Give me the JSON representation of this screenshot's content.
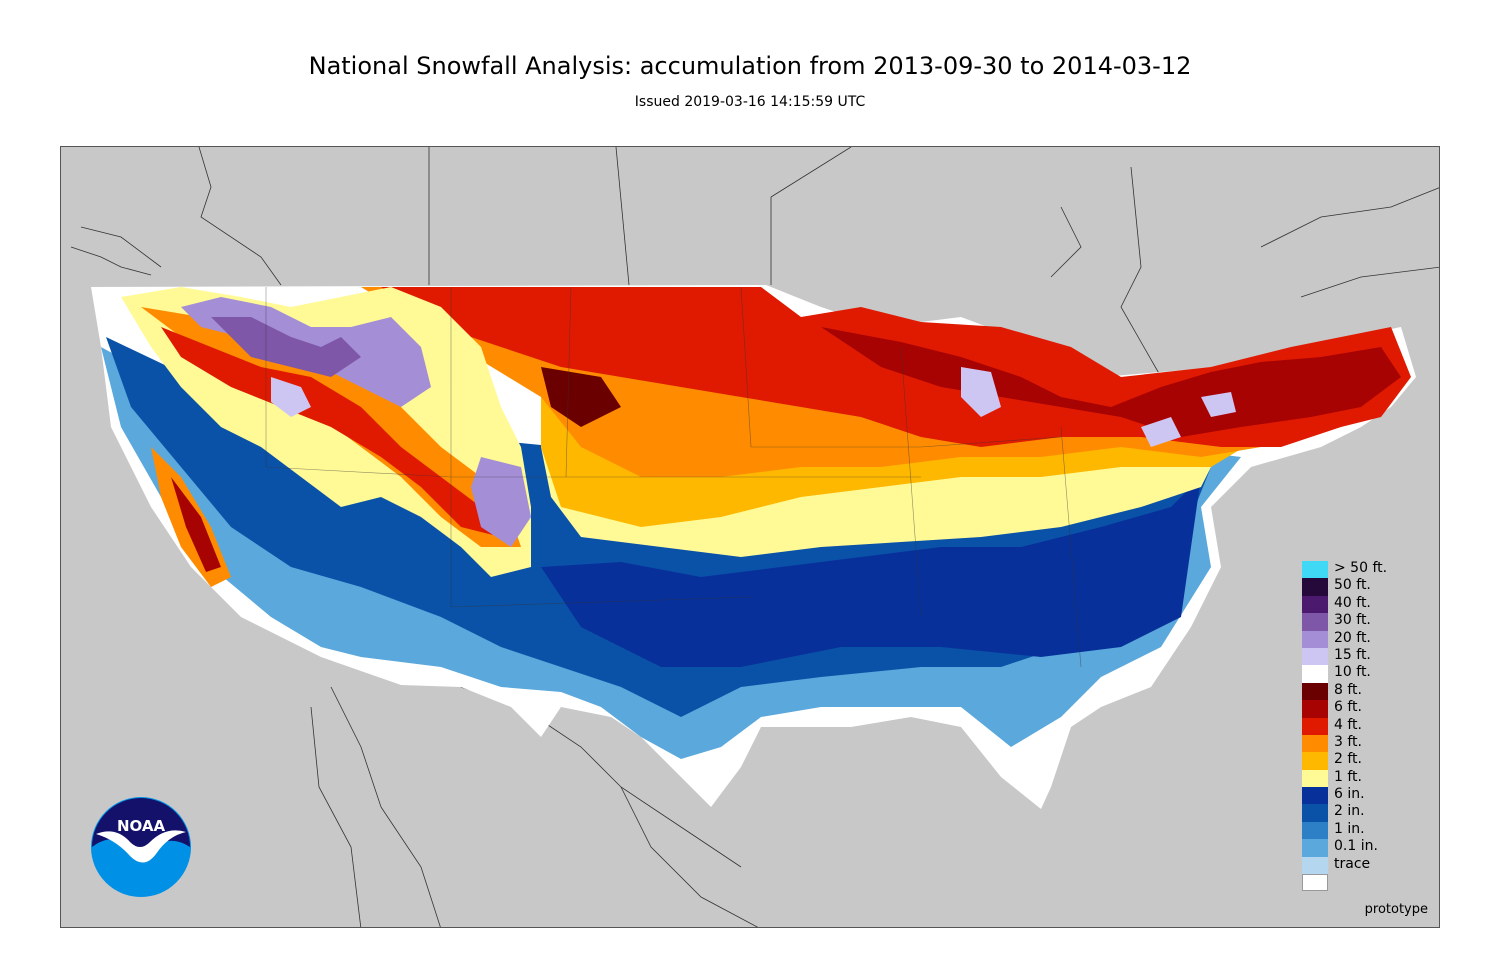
{
  "header": {
    "title": "National Snowfall Analysis: accumulation from 2013-09-30 to 2014-03-12",
    "subtitle": "Issued 2019-03-16 14:15:59 UTC"
  },
  "logo": {
    "text": "NOAA",
    "icon": "noaa-logo-icon"
  },
  "footer": {
    "note": "prototype"
  },
  "map": {
    "background_color": "#c8c8c8",
    "land_outline_color": "#333333"
  },
  "legend": [
    {
      "label": "> 50 ft.",
      "color": "#3fd9f5"
    },
    {
      "label": "50 ft.",
      "color": "#26093b"
    },
    {
      "label": "40 ft.",
      "color": "#4b1a6e"
    },
    {
      "label": "30 ft.",
      "color": "#7e57a8"
    },
    {
      "label": "20 ft.",
      "color": "#a48ed6"
    },
    {
      "label": "15 ft.",
      "color": "#cec6f2"
    },
    {
      "label": "10 ft.",
      "color": "#ffffff"
    },
    {
      "label": "8 ft.",
      "color": "#6b0000"
    },
    {
      "label": "6 ft.",
      "color": "#a80303"
    },
    {
      "label": "4 ft.",
      "color": "#e01a00"
    },
    {
      "label": "3 ft.",
      "color": "#ff8c00"
    },
    {
      "label": "2 ft.",
      "color": "#ffb800"
    },
    {
      "label": "1 ft.",
      "color": "#fffa96"
    },
    {
      "label": "6 in.",
      "color": "#08309a"
    },
    {
      "label": "2 in.",
      "color": "#0a52a8"
    },
    {
      "label": "1 in.",
      "color": "#2e80c6"
    },
    {
      "label": "0.1 in.",
      "color": "#5aa8dc"
    },
    {
      "label": "trace",
      "color": "#b4d6ee"
    }
  ],
  "legend_bottom_color": "#ffffff"
}
